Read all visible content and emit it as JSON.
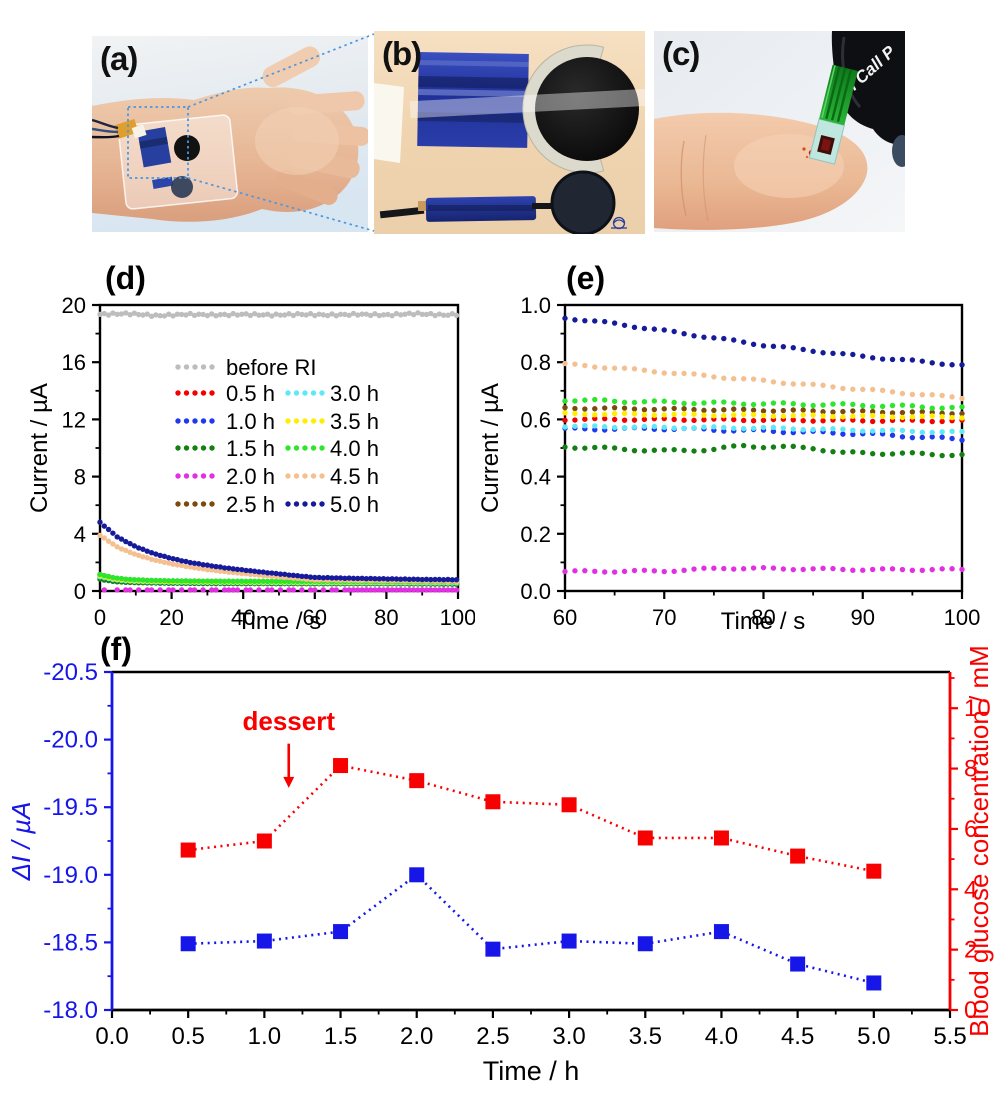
{
  "figure": {
    "panels": {
      "a": {
        "label": "(a)"
      },
      "b": {
        "label": "(b)"
      },
      "c": {
        "label": "(c)",
        "meter_text": "n Call P"
      }
    },
    "selection_color": "#4a97e3"
  },
  "chart_data": [
    {
      "id": "d",
      "type": "scatter",
      "title": "(d)",
      "xlabel": "Time / s",
      "ylabel": "Current / µA",
      "xlim": [
        0,
        100
      ],
      "ylim": [
        0,
        20
      ],
      "xticks": [
        0,
        20,
        40,
        60,
        80,
        100
      ],
      "xtick_labels": [
        "0",
        "20",
        "40",
        "60",
        "80",
        "100"
      ],
      "yticks": [
        0,
        4,
        8,
        12,
        16,
        20
      ],
      "ytick_labels": [
        "0",
        "4",
        "8",
        "12",
        "16",
        "20"
      ],
      "xminor": 10,
      "yminor": 2,
      "legend_position": "inside-center",
      "series": [
        {
          "name": "before RI",
          "color": "#bdbdbd",
          "wiggle": 0.07,
          "points": [
            [
              0,
              19.35
            ],
            [
              8,
              19.4
            ],
            [
              16,
              19.25
            ],
            [
              24,
              19.35
            ],
            [
              32,
              19.3
            ],
            [
              40,
              19.35
            ],
            [
              48,
              19.3
            ],
            [
              56,
              19.35
            ],
            [
              64,
              19.3
            ],
            [
              72,
              19.35
            ],
            [
              80,
              19.3
            ],
            [
              88,
              19.4
            ],
            [
              96,
              19.3
            ],
            [
              100,
              19.35
            ]
          ]
        },
        {
          "name": "0.5 h",
          "color": "#f40000",
          "wiggle": 0.006,
          "points": [
            [
              0,
              1.05
            ],
            [
              4,
              0.82
            ],
            [
              8,
              0.72
            ],
            [
              14,
              0.66
            ],
            [
              20,
              0.64
            ],
            [
              30,
              0.62
            ],
            [
              40,
              0.61
            ],
            [
              60,
              0.6
            ],
            [
              80,
              0.6
            ],
            [
              100,
              0.595
            ]
          ]
        },
        {
          "name": "1.0 h",
          "color": "#2038f0",
          "wiggle": 0.006,
          "points": [
            [
              0,
              0.95
            ],
            [
              4,
              0.76
            ],
            [
              8,
              0.68
            ],
            [
              14,
              0.63
            ],
            [
              20,
              0.61
            ],
            [
              30,
              0.59
            ],
            [
              40,
              0.58
            ],
            [
              60,
              0.565
            ],
            [
              80,
              0.56
            ],
            [
              100,
              0.53
            ]
          ]
        },
        {
          "name": "1.5 h",
          "color": "#148014",
          "wiggle": 0.006,
          "points": [
            [
              0,
              0.82
            ],
            [
              4,
              0.66
            ],
            [
              8,
              0.6
            ],
            [
              14,
              0.56
            ],
            [
              20,
              0.54
            ],
            [
              30,
              0.52
            ],
            [
              40,
              0.515
            ],
            [
              60,
              0.505
            ],
            [
              80,
              0.5
            ],
            [
              100,
              0.475
            ]
          ]
        },
        {
          "name": "2.0 h",
          "color": "#e32fe3",
          "wiggle": 0.004,
          "points": [
            [
              0,
              0.07
            ],
            [
              20,
              0.07
            ],
            [
              40,
              0.072
            ],
            [
              60,
              0.07
            ],
            [
              80,
              0.078
            ],
            [
              100,
              0.075
            ]
          ]
        },
        {
          "name": "2.5 h",
          "color": "#7c4a0d",
          "wiggle": 0.006,
          "points": [
            [
              0,
              1.15
            ],
            [
              4,
              0.9
            ],
            [
              8,
              0.79
            ],
            [
              14,
              0.72
            ],
            [
              20,
              0.69
            ],
            [
              30,
              0.665
            ],
            [
              40,
              0.655
            ],
            [
              60,
              0.64
            ],
            [
              80,
              0.632
            ],
            [
              100,
              0.62
            ]
          ]
        },
        {
          "name": "3.0 h",
          "color": "#5fe8f7",
          "wiggle": 0.006,
          "points": [
            [
              0,
              1.0
            ],
            [
              4,
              0.79
            ],
            [
              8,
              0.7
            ],
            [
              14,
              0.645
            ],
            [
              20,
              0.62
            ],
            [
              30,
              0.6
            ],
            [
              40,
              0.59
            ],
            [
              60,
              0.575
            ],
            [
              80,
              0.565
            ],
            [
              100,
              0.555
            ]
          ]
        },
        {
          "name": "3.5 h",
          "color": "#ffee00",
          "wiggle": 0.006,
          "points": [
            [
              0,
              1.08
            ],
            [
              4,
              0.85
            ],
            [
              8,
              0.75
            ],
            [
              14,
              0.69
            ],
            [
              20,
              0.66
            ],
            [
              30,
              0.64
            ],
            [
              40,
              0.63
            ],
            [
              60,
              0.62
            ],
            [
              80,
              0.615
            ],
            [
              100,
              0.61
            ]
          ]
        },
        {
          "name": "4.0 h",
          "color": "#2ce52c",
          "wiggle": 0.006,
          "points": [
            [
              0,
              1.15
            ],
            [
              4,
              0.92
            ],
            [
              8,
              0.81
            ],
            [
              14,
              0.745
            ],
            [
              20,
              0.715
            ],
            [
              30,
              0.69
            ],
            [
              40,
              0.68
            ],
            [
              60,
              0.67
            ],
            [
              80,
              0.655
            ],
            [
              100,
              0.64
            ]
          ]
        },
        {
          "name": "4.5 h",
          "color": "#f4c090",
          "wiggle": 0.012,
          "points": [
            [
              0,
              3.9
            ],
            [
              5,
              3.05
            ],
            [
              10,
              2.55
            ],
            [
              15,
              2.18
            ],
            [
              20,
              1.9
            ],
            [
              25,
              1.68
            ],
            [
              30,
              1.5
            ],
            [
              35,
              1.35
            ],
            [
              40,
              1.22
            ],
            [
              45,
              1.1
            ],
            [
              50,
              0.99
            ],
            [
              55,
              0.89
            ],
            [
              60,
              0.79
            ],
            [
              70,
              0.755
            ],
            [
              80,
              0.725
            ],
            [
              90,
              0.7
            ],
            [
              100,
              0.675
            ]
          ]
        },
        {
          "name": "5.0 h",
          "color": "#161b9b",
          "wiggle": 0.012,
          "points": [
            [
              0,
              4.8
            ],
            [
              5,
              3.75
            ],
            [
              10,
              3.1
            ],
            [
              15,
              2.62
            ],
            [
              20,
              2.28
            ],
            [
              25,
              2.0
            ],
            [
              30,
              1.8
            ],
            [
              35,
              1.62
            ],
            [
              40,
              1.47
            ],
            [
              45,
              1.33
            ],
            [
              50,
              1.2
            ],
            [
              55,
              1.07
            ],
            [
              60,
              0.95
            ],
            [
              70,
              0.89
            ],
            [
              80,
              0.85
            ],
            [
              90,
              0.81
            ],
            [
              100,
              0.79
            ]
          ]
        }
      ]
    },
    {
      "id": "e",
      "type": "scatter",
      "title": "(e)",
      "xlabel": "Time / s",
      "ylabel": "Current / µA",
      "xlim": [
        60,
        100
      ],
      "ylim": [
        0,
        1.0
      ],
      "xticks": [
        60,
        70,
        80,
        90,
        100
      ],
      "xtick_labels": [
        "60",
        "70",
        "80",
        "90",
        "100"
      ],
      "yticks": [
        0,
        0.2,
        0.4,
        0.6,
        0.8,
        1.0
      ],
      "ytick_labels": [
        "0.0",
        "0.2",
        "0.4",
        "0.6",
        "0.8",
        "1.0"
      ],
      "xminor": 5,
      "yminor": 0.1,
      "series": [
        {
          "name": "0.5 h",
          "color": "#f40000",
          "wiggle": 0.003,
          "points": [
            [
              60,
              0.6
            ],
            [
              70,
              0.6
            ],
            [
              80,
              0.598
            ],
            [
              90,
              0.596
            ],
            [
              100,
              0.595
            ]
          ]
        },
        {
          "name": "1.0 h",
          "color": "#2038f0",
          "wiggle": 0.004,
          "points": [
            [
              60,
              0.566
            ],
            [
              70,
              0.568
            ],
            [
              80,
              0.56
            ],
            [
              90,
              0.55
            ],
            [
              100,
              0.53
            ]
          ]
        },
        {
          "name": "1.5 h",
          "color": "#148014",
          "wiggle": 0.004,
          "points": [
            [
              60,
              0.505
            ],
            [
              70,
              0.49
            ],
            [
              75,
              0.495
            ],
            [
              78,
              0.508
            ],
            [
              80,
              0.505
            ],
            [
              85,
              0.5
            ],
            [
              88,
              0.483
            ],
            [
              92,
              0.482
            ],
            [
              100,
              0.476
            ]
          ]
        },
        {
          "name": "2.0 h",
          "color": "#e32fe3",
          "wiggle": 0.003,
          "points": [
            [
              60,
              0.068
            ],
            [
              70,
              0.07
            ],
            [
              76,
              0.08
            ],
            [
              82,
              0.078
            ],
            [
              90,
              0.075
            ],
            [
              100,
              0.075
            ]
          ]
        },
        {
          "name": "2.5 h",
          "color": "#7c4a0d",
          "wiggle": 0.003,
          "points": [
            [
              60,
              0.64
            ],
            [
              70,
              0.636
            ],
            [
              80,
              0.632
            ],
            [
              90,
              0.627
            ],
            [
              100,
              0.622
            ]
          ]
        },
        {
          "name": "3.0 h",
          "color": "#5fe8f7",
          "wiggle": 0.003,
          "points": [
            [
              60,
              0.576
            ],
            [
              70,
              0.572
            ],
            [
              80,
              0.57
            ],
            [
              90,
              0.562
            ],
            [
              100,
              0.555
            ]
          ]
        },
        {
          "name": "3.5 h",
          "color": "#ffee00",
          "wiggle": 0.003,
          "points": [
            [
              60,
              0.62
            ],
            [
              70,
              0.617
            ],
            [
              80,
              0.614
            ],
            [
              90,
              0.611
            ],
            [
              100,
              0.608
            ]
          ]
        },
        {
          "name": "4.0 h",
          "color": "#2ce52c",
          "wiggle": 0.004,
          "points": [
            [
              60,
              0.668
            ],
            [
              70,
              0.66
            ],
            [
              80,
              0.655
            ],
            [
              90,
              0.65
            ],
            [
              100,
              0.64
            ]
          ]
        },
        {
          "name": "4.5 h",
          "color": "#f4c090",
          "wiggle": 0.003,
          "points": [
            [
              60,
              0.793
            ],
            [
              65,
              0.78
            ],
            [
              70,
              0.765
            ],
            [
              75,
              0.75
            ],
            [
              80,
              0.735
            ],
            [
              85,
              0.72
            ],
            [
              90,
              0.705
            ],
            [
              95,
              0.69
            ],
            [
              100,
              0.675
            ]
          ]
        },
        {
          "name": "5.0 h",
          "color": "#161b9b",
          "wiggle": 0.003,
          "points": [
            [
              60,
              0.955
            ],
            [
              65,
              0.935
            ],
            [
              70,
              0.91
            ],
            [
              75,
              0.885
            ],
            [
              80,
              0.86
            ],
            [
              85,
              0.84
            ],
            [
              90,
              0.82
            ],
            [
              95,
              0.805
            ],
            [
              100,
              0.79
            ]
          ]
        }
      ]
    },
    {
      "id": "f",
      "type": "dual-scatter",
      "title": "(f)",
      "xlabel": "Time / h",
      "ylabel_left": "ΔI / µA",
      "ylabel_right": "Blood glucose concentration / mM",
      "xlim": [
        0,
        5.5
      ],
      "xticks": [
        0,
        0.5,
        1,
        1.5,
        2,
        2.5,
        3,
        3.5,
        4,
        4.5,
        5,
        5.5
      ],
      "xtick_labels": [
        "0.0",
        "0.5",
        "1.0",
        "1.5",
        "2.0",
        "2.5",
        "3.0",
        "3.5",
        "4.0",
        "4.5",
        "5.0",
        "5.5"
      ],
      "xminor": 0.25,
      "left": {
        "lim": [
          -20.5,
          -18.0
        ],
        "inverted": true,
        "color": "#1616e8",
        "ticks": [
          -20.5,
          -20.0,
          -19.5,
          -19.0,
          -18.5,
          -18.0
        ],
        "tick_labels": [
          "-20.5",
          "-20.0",
          "-19.5",
          "-19.0",
          "-18.5",
          "-18.0"
        ],
        "minor": 0.25
      },
      "right": {
        "lim": [
          0,
          11.2
        ],
        "color": "#f80000",
        "ticks": [
          0,
          2,
          4,
          6,
          8,
          10
        ],
        "tick_labels": [
          "0",
          "2",
          "4",
          "6",
          "8",
          "10"
        ],
        "minor": 1
      },
      "x": [
        0.5,
        1.0,
        1.5,
        2.0,
        2.5,
        3.0,
        3.5,
        4.0,
        4.5,
        5.0
      ],
      "series": [
        {
          "name": "ΔI",
          "axis": "left",
          "color": "#1616e8",
          "marker": "square",
          "values": [
            -18.49,
            -18.51,
            -18.58,
            -19.0,
            -18.45,
            -18.51,
            -18.49,
            -18.58,
            -18.34,
            -18.2
          ]
        },
        {
          "name": "Blood glucose concentration",
          "axis": "right",
          "color": "#f80000",
          "marker": "square",
          "values": [
            5.3,
            5.6,
            8.1,
            7.6,
            6.9,
            6.8,
            5.7,
            5.7,
            5.1,
            4.6
          ]
        }
      ],
      "annotation": {
        "text": "dessert",
        "color": "#f80000",
        "x": 1.16,
        "text_y": -20.07,
        "arrow_from_y": -19.97,
        "arrow_to_y": -19.65
      }
    }
  ]
}
